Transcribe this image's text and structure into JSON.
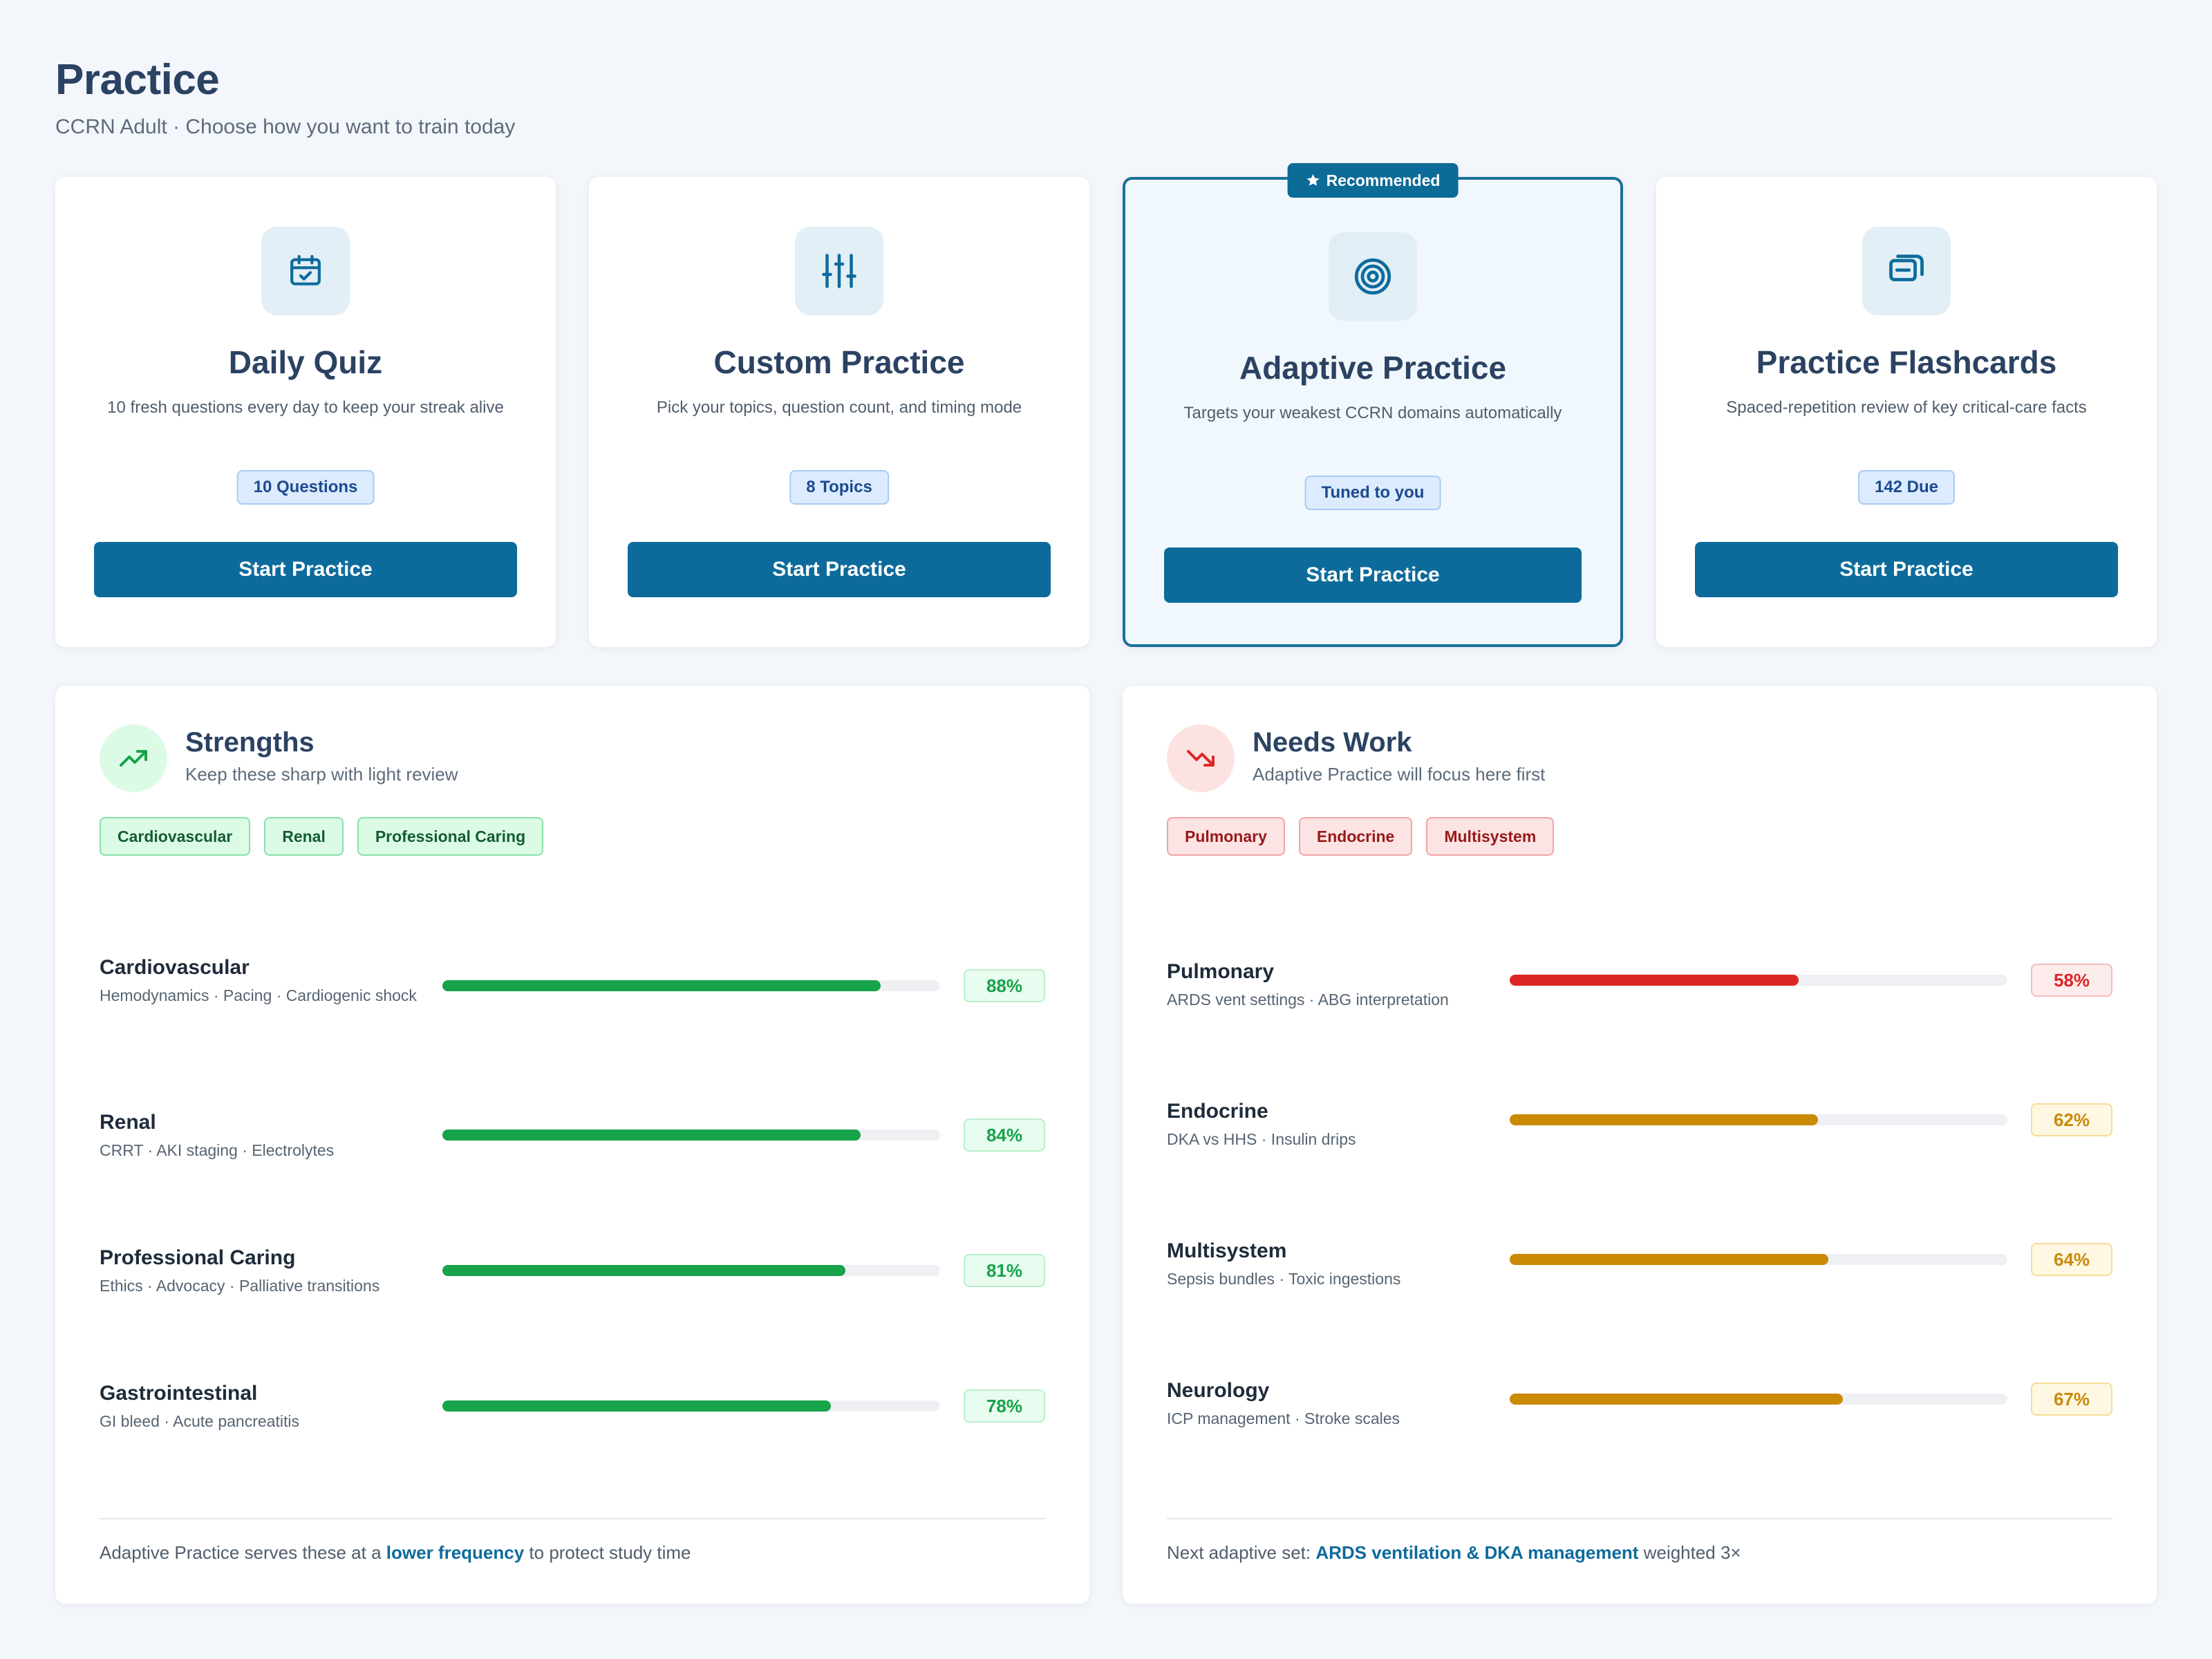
{
  "header": {
    "title": "Practice",
    "subtitle": "CCRN Adult · Choose how you want to train today"
  },
  "cards": [
    {
      "icon": "calendar-check-icon",
      "title": "Daily Quiz",
      "description": "10 fresh questions every day to keep your streak alive",
      "chip": "10 Questions",
      "button": "Start Practice"
    },
    {
      "icon": "sliders-icon",
      "title": "Custom Practice",
      "description": "Pick your topics, question count, and timing mode",
      "chip": "8 Topics",
      "button": "Start Practice"
    },
    {
      "icon": "target-icon",
      "title": "Adaptive Practice",
      "description": "Targets your weakest CCRN domains automatically",
      "chip": "Tuned to you",
      "button": "Start Practice",
      "badge": "Recommended"
    },
    {
      "icon": "flashcards-icon",
      "title": "Practice Flashcards",
      "description": "Spaced-repetition review of key critical-care facts",
      "chip": "142 Due",
      "button": "Start Practice"
    }
  ],
  "strengths": {
    "title": "Strengths",
    "subtitle": "Keep these sharp with light review",
    "tags": [
      "Cardiovascular",
      "Renal",
      "Professional Caring"
    ],
    "rows": [
      {
        "name": "Cardiovascular",
        "detail": "Hemodynamics · Pacing · Cardiogenic shock",
        "percent": 88,
        "label": "88%"
      },
      {
        "name": "Renal",
        "detail": "CRRT · AKI staging · Electrolytes",
        "percent": 84,
        "label": "84%"
      },
      {
        "name": "Professional Caring",
        "detail": "Ethics · Advocacy · Palliative transitions",
        "percent": 81,
        "label": "81%"
      },
      {
        "name": "Gastrointestinal",
        "detail": "GI bleed · Acute pancreatitis",
        "percent": 78,
        "label": "78%"
      }
    ],
    "footer_pre": "Adaptive Practice serves these at a ",
    "footer_em": "lower frequency",
    "footer_post": " to protect study time"
  },
  "needs_work": {
    "title": "Needs Work",
    "subtitle": "Adaptive Practice will focus here first",
    "tags": [
      "Pulmonary",
      "Endocrine",
      "Multisystem"
    ],
    "rows": [
      {
        "name": "Pulmonary",
        "detail": "ARDS vent settings · ABG interpretation",
        "percent": 58,
        "label": "58%",
        "level": "red"
      },
      {
        "name": "Endocrine",
        "detail": "DKA vs HHS · Insulin drips",
        "percent": 62,
        "label": "62%",
        "level": "amber"
      },
      {
        "name": "Multisystem",
        "detail": "Sepsis bundles · Toxic ingestions",
        "percent": 64,
        "label": "64%",
        "level": "amber"
      },
      {
        "name": "Neurology",
        "detail": "ICP management · Stroke scales",
        "percent": 67,
        "label": "67%",
        "level": "amber"
      }
    ],
    "footer_pre": "Next adaptive set: ",
    "footer_em": "ARDS ventilation & DKA management",
    "footer_post": " weighted 3×"
  },
  "colors": {
    "primary": "#0d6b9c",
    "good": "#16a34a",
    "red": "#dc2626",
    "amber": "#ca8a04"
  }
}
